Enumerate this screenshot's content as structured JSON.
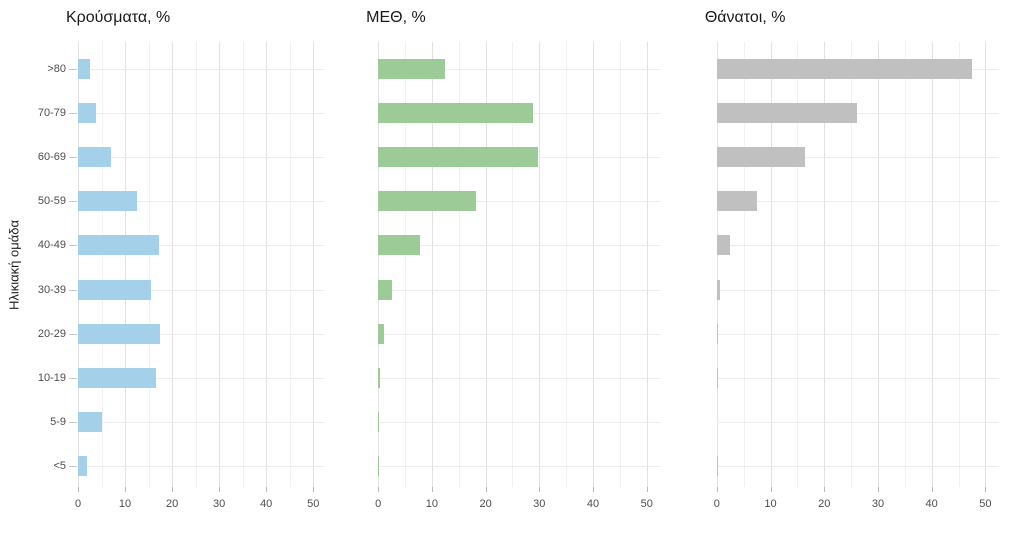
{
  "chart_data": {
    "type": "bar",
    "orientation": "horizontal",
    "title": "",
    "xlabel": "",
    "ylabel": "Ηλικιακή ομάδα",
    "categories": [
      ">80",
      "70-79",
      "60-69",
      "50-59",
      "40-49",
      "30-39",
      "20-29",
      "10-19",
      "5-9",
      "<5"
    ],
    "x_ticks": [
      0,
      10,
      20,
      30,
      40,
      50
    ],
    "xlim": [
      0,
      52.5
    ],
    "grid": "on",
    "legend_position": "none",
    "panels": [
      {
        "id": "cases",
        "title": "Κρούσματα, %",
        "bar_color": "#a5d0e9",
        "values": [
          2.6,
          3.9,
          7.1,
          12.6,
          17.2,
          15.6,
          17.5,
          16.5,
          5.2,
          1.9
        ]
      },
      {
        "id": "icu",
        "title": "ΜΕΘ, %",
        "bar_color": "#9dcb98",
        "values": [
          12.4,
          28.8,
          29.8,
          18.2,
          7.8,
          2.6,
          1.0,
          0.4,
          0.2,
          0.1
        ]
      },
      {
        "id": "deaths",
        "title": "Θάνατοι, %",
        "bar_color": "#c0c0c0",
        "values": [
          47.5,
          26.1,
          16.4,
          7.5,
          2.4,
          0.6,
          0.2,
          0.2,
          0.0,
          0.1
        ]
      }
    ],
    "colors": {
      "background": "#ffffff",
      "grid_major": "#e2e2e2",
      "grid_minor": "#f1f1f1",
      "grid_row": "#ececec",
      "axis_text": "#4d4d4d",
      "title_text": "#1a1a1a"
    }
  }
}
